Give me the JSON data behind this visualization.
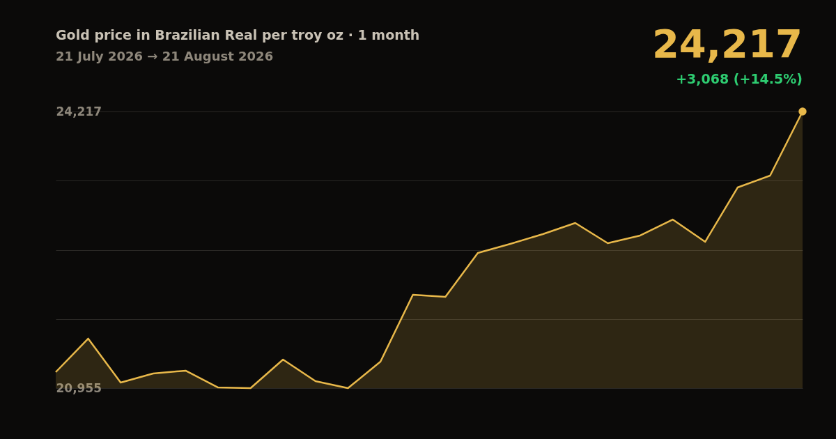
{
  "chart_data": {
    "type": "area",
    "title": "Gold price in Brazilian Real per troy oz · 1 month",
    "subtitle": "21 July 2026 → 21 August 2026",
    "categories": [
      null,
      null,
      null,
      null,
      null,
      null,
      null,
      null,
      null,
      null,
      null,
      null,
      null,
      null,
      null,
      null,
      null,
      null,
      null,
      null,
      null,
      null,
      null,
      null
    ],
    "series": [
      {
        "color": "#e8b84a",
        "values": [
          21144,
          21539,
          21021,
          21128,
          21161,
          20963,
          20955,
          21292,
          21037,
          20955,
          21267,
          22056,
          22031,
          22549,
          22656,
          22771,
          22902,
          22664,
          22755,
          22943,
          22680,
          23321,
          23461,
          24217
        ]
      }
    ],
    "ylim": [
      20955,
      24217
    ],
    "yticks": [
      {
        "value": 20955,
        "label": "20,955"
      },
      {
        "value": 21770.5,
        "label": null
      },
      {
        "value": 22586,
        "label": null
      },
      {
        "value": 23401.5,
        "label": null
      },
      {
        "value": 24217,
        "label": "24,217"
      }
    ],
    "grid": "y",
    "tick_labels": "y",
    "line_style": "solid",
    "annotations": [
      "24,217",
      "+3,068 (+14.5%)"
    ]
  }
}
